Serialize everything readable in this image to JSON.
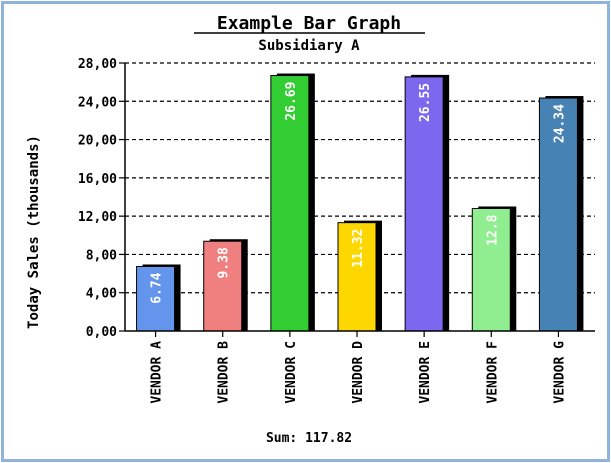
{
  "chart_data": {
    "type": "bar",
    "title": "Example Bar Graph",
    "subtitle": "Subsidiary A",
    "ylabel": "Today Sales (thousands)",
    "xlabel": "",
    "ylim": [
      0,
      28
    ],
    "y_ticks": [
      "0,00",
      "4,00",
      "8,00",
      "12,00",
      "16,00",
      "20,00",
      "24,00",
      "28,00"
    ],
    "grid": true,
    "categories": [
      "VENDOR A",
      "VENDOR B",
      "VENDOR C",
      "VENDOR D",
      "VENDOR E",
      "VENDOR F",
      "VENDOR G"
    ],
    "values": [
      6.74,
      9.38,
      26.69,
      11.32,
      26.55,
      12.8,
      24.34
    ],
    "value_labels": [
      "6.74",
      "9.38",
      "26.69",
      "11.32",
      "26.55",
      "12.8",
      "24.34"
    ],
    "colors": [
      "#6495ed",
      "#f08080",
      "#32cd32",
      "#ffd700",
      "#7b68ee",
      "#90ee90",
      "#4682b4"
    ],
    "sum_label": "Sum: 117.82"
  }
}
